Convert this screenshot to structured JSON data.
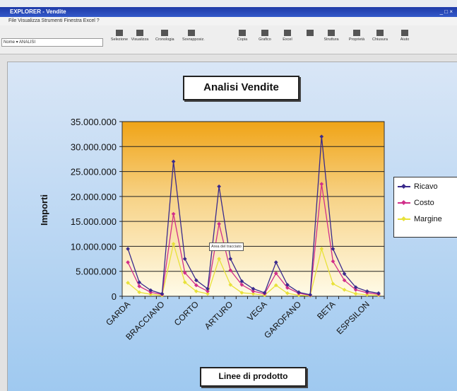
{
  "window": {
    "title": "EXPLORER - Vendite",
    "controls": "_ □ ×"
  },
  "menu": {
    "text": "File  Visualizza  Strumenti  Finestra  Excel  ?"
  },
  "toolbar": {
    "namebox": "Nome ▾  ANALISI",
    "buttons": [
      "Selezione",
      "Visualizza",
      "Cronologia",
      "Sovrapposiz.",
      "Copia",
      "Grafico",
      "Excel",
      "",
      "Struttura",
      "Proprietà",
      "Chiusura",
      "Aiuto"
    ]
  },
  "chart": {
    "title": "Analisi Vendite",
    "x_title": "Linee di prodotto",
    "y_title": "Importi",
    "tooltip": "Area del tracciato",
    "legend": [
      {
        "name": "Ricavo",
        "color": "#3a2a8c"
      },
      {
        "name": "Costo",
        "color": "#d12e8a"
      },
      {
        "name": "Margine",
        "color": "#e8e23a"
      }
    ]
  },
  "chart_data": {
    "type": "line",
    "title": "Analisi Vendite",
    "xlabel": "Linee di prodotto",
    "ylabel": "Importi",
    "ylim": [
      0,
      35000000
    ],
    "yticks": [
      "0",
      "5.000.000",
      "10.000.000",
      "15.000.000",
      "20.000.000",
      "25.000.000",
      "30.000.000",
      "35.000.000"
    ],
    "xtick_labels": [
      "GARDA",
      "BRACCIANO",
      "CORTO",
      "ARTURO",
      "VEGA",
      "GAROFANO",
      "BETA",
      "ESPSILON"
    ],
    "legend_position": "right",
    "grid": true,
    "series": [
      {
        "name": "Ricavo",
        "color": "#3a2a8c",
        "values": [
          9500000,
          2800000,
          1200000,
          500000,
          27000000,
          7500000,
          3200000,
          1500000,
          22000000,
          7500000,
          3000000,
          1500000,
          700000,
          6800000,
          2300000,
          800000,
          300000,
          32000000,
          9500000,
          4500000,
          1800000,
          1000000,
          600000
        ]
      },
      {
        "name": "Costo",
        "color": "#d12e8a",
        "values": [
          6800000,
          2000000,
          800000,
          350000,
          16500000,
          4700000,
          2200000,
          1000000,
          14500000,
          5200000,
          2300000,
          1000000,
          500000,
          4600000,
          1700000,
          600000,
          200000,
          22500000,
          7000000,
          3200000,
          1300000,
          700000,
          400000
        ]
      },
      {
        "name": "Margine",
        "color": "#e8e23a",
        "values": [
          2700000,
          800000,
          400000,
          150000,
          10500000,
          2800000,
          1000000,
          500000,
          7500000,
          2300000,
          700000,
          500000,
          200000,
          2200000,
          600000,
          200000,
          100000,
          9500000,
          2500000,
          1300000,
          500000,
          300000,
          200000
        ]
      }
    ]
  }
}
